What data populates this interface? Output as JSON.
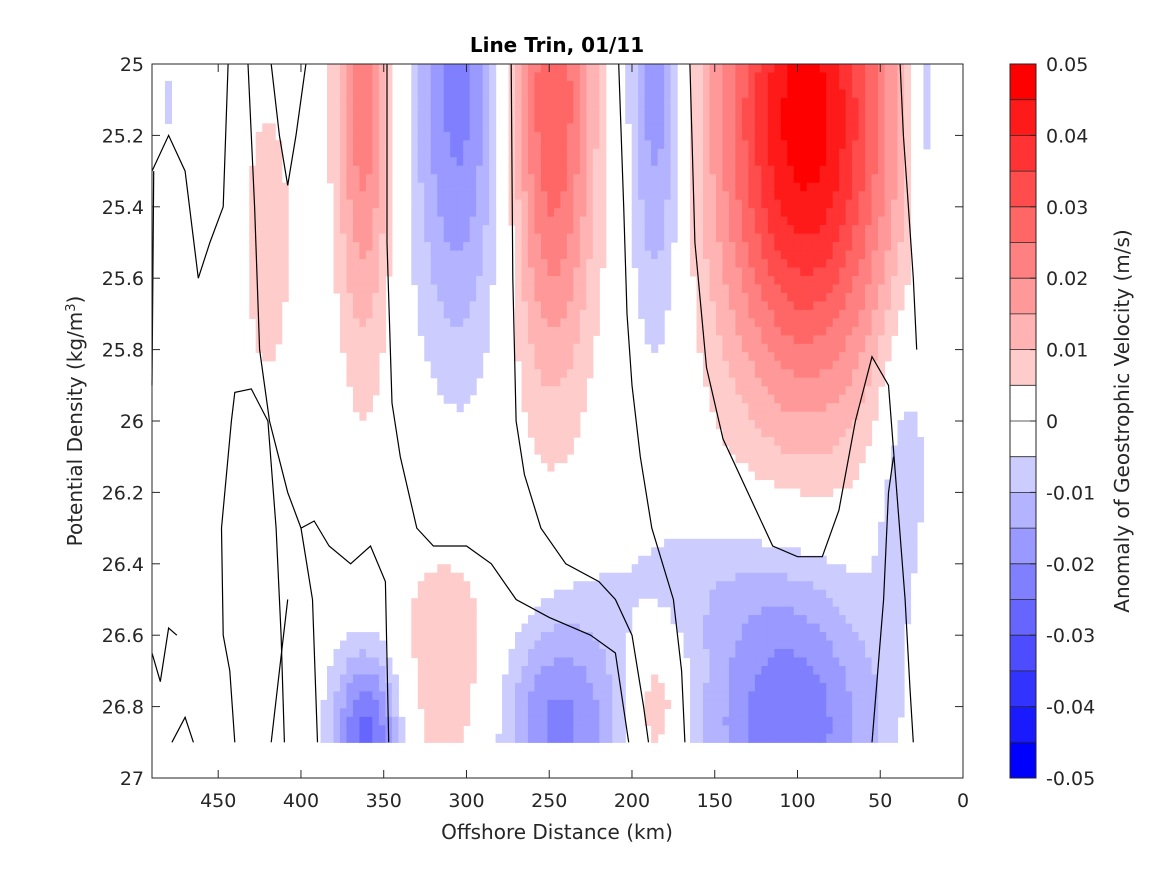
{
  "chart_data": {
    "type": "heatmap",
    "subtype": "filled-contour",
    "title": "Line Trin, 01/11",
    "xlabel": "Offshore Distance (km)",
    "ylabel": "Potential Density (kg/m3)",
    "ylabel_parts": {
      "main": "Potential Density (kg/m",
      "sup": "3",
      "tail": ")"
    },
    "colorbar_label": "Anomaly of Geostrophic Velocity (m/s)",
    "xlim": [
      490,
      0
    ],
    "ylim": [
      25,
      27
    ],
    "x_reversed": true,
    "y_reversed": true,
    "x_ticks": [
      450,
      400,
      350,
      300,
      250,
      200,
      150,
      100,
      50,
      0
    ],
    "y_ticks": [
      25,
      25.2,
      25.4,
      25.6,
      25.8,
      26,
      26.2,
      26.4,
      26.6,
      26.8,
      27
    ],
    "y_tick_labels": [
      "25",
      "25.2",
      "25.4",
      "25.6",
      "25.8",
      "26",
      "26.2",
      "26.4",
      "26.6",
      "26.8",
      "27"
    ],
    "colorbar_ticks": [
      0.05,
      0.04,
      0.03,
      0.02,
      0.01,
      0,
      -0.01,
      -0.02,
      -0.03,
      -0.04,
      -0.05
    ],
    "colorbar_tick_labels": [
      "0.05",
      "0.04",
      "0.03",
      "0.02",
      "0.01",
      "0",
      "-0.01",
      "-0.02",
      "-0.03",
      "-0.04",
      "-0.05"
    ],
    "colorbar_levels": [
      0.05,
      0.045,
      0.04,
      0.035,
      0.03,
      0.025,
      0.02,
      0.015,
      0.01,
      0.005,
      0,
      -0.005,
      -0.01,
      -0.015,
      -0.02,
      -0.025,
      -0.03,
      -0.035,
      -0.04,
      -0.045,
      -0.05
    ],
    "colormap": {
      "positive": "#ff0000",
      "zero": "#ffffff",
      "negative": "#0000ff"
    },
    "data_extent": {
      "x": [
        490,
        20
      ],
      "y": [
        25,
        26.9
      ]
    },
    "cores": [
      {
        "x": 362,
        "y": 25.0,
        "x_sigma": 12,
        "y_sigma": 0.55,
        "amp": 0.025
      },
      {
        "x": 420,
        "y": 25.5,
        "x_sigma": 12,
        "y_sigma": 0.35,
        "amp": 0.008
      },
      {
        "x": 305,
        "y": 25.05,
        "x_sigma": 20,
        "y_sigma": 0.55,
        "amp": -0.022
      },
      {
        "x": 248,
        "y": 25.1,
        "x_sigma": 18,
        "y_sigma": 0.55,
        "amp": 0.03
      },
      {
        "x": 185,
        "y": 25.05,
        "x_sigma": 12,
        "y_sigma": 0.5,
        "amp": -0.02
      },
      {
        "x": 95,
        "y": 25.15,
        "x_sigma": 38,
        "y_sigma": 0.55,
        "amp": 0.048
      },
      {
        "x": 20,
        "y": 25.05,
        "x_sigma": 10,
        "y_sigma": 0.3,
        "amp": -0.015
      },
      {
        "x": 35,
        "y": 26.2,
        "x_sigma": 12,
        "y_sigma": 0.35,
        "amp": -0.012
      },
      {
        "x": 360,
        "y": 26.88,
        "x_sigma": 15,
        "y_sigma": 0.18,
        "amp": -0.028
      },
      {
        "x": 245,
        "y": 26.85,
        "x_sigma": 28,
        "y_sigma": 0.22,
        "amp": -0.022
      },
      {
        "x": 105,
        "y": 26.85,
        "x_sigma": 38,
        "y_sigma": 0.28,
        "amp": -0.025
      },
      {
        "x": 310,
        "y": 26.7,
        "x_sigma": 28,
        "y_sigma": 0.3,
        "amp": 0.01
      },
      {
        "x": 185,
        "y": 26.8,
        "x_sigma": 12,
        "y_sigma": 0.15,
        "amp": 0.012
      },
      {
        "x": 25,
        "y": 26.7,
        "x_sigma": 8,
        "y_sigma": 0.3,
        "amp": 0.009
      },
      {
        "x": 148,
        "y": 26.45,
        "x_sigma": 60,
        "y_sigma": 0.15,
        "amp": -0.006
      },
      {
        "x": 480,
        "y": 25.1,
        "x_sigma": 5,
        "y_sigma": 0.1,
        "amp": -0.006
      }
    ],
    "zero_contours": [
      [
        [
          490,
          25.3
        ],
        [
          480,
          25.2
        ],
        [
          470,
          25.3
        ],
        [
          462,
          25.6
        ],
        [
          455,
          25.5
        ],
        [
          447,
          25.4
        ],
        [
          444,
          25.0
        ]
      ],
      [
        [
          490,
          25.9
        ],
        [
          489,
          25.3
        ]
      ],
      [
        [
          432,
          25.0
        ],
        [
          428,
          25.4
        ],
        [
          425,
          25.8
        ],
        [
          419,
          26.0
        ],
        [
          408,
          26.2
        ],
        [
          400,
          26.3
        ],
        [
          392,
          26.28
        ],
        [
          383,
          26.35
        ],
        [
          370,
          26.4
        ],
        [
          358,
          26.35
        ],
        [
          349,
          26.45
        ],
        [
          347,
          26.9
        ]
      ],
      [
        [
          418,
          25.0
        ],
        [
          413,
          25.2
        ],
        [
          408,
          25.34
        ],
        [
          403,
          25.2
        ],
        [
          397,
          25.0
        ]
      ],
      [
        [
          400,
          26.3
        ],
        [
          393,
          26.5
        ],
        [
          390,
          26.9
        ]
      ],
      [
        [
          408,
          26.5
        ],
        [
          413,
          26.7
        ],
        [
          418,
          26.9
        ]
      ],
      [
        [
          440,
          26.9
        ],
        [
          443,
          26.7
        ],
        [
          447,
          26.6
        ],
        [
          448,
          26.3
        ],
        [
          442,
          26.0
        ],
        [
          440,
          25.92
        ],
        [
          430,
          25.91
        ],
        [
          420,
          26.0
        ],
        [
          415,
          26.3
        ],
        [
          412,
          26.6
        ],
        [
          410,
          26.9
        ]
      ],
      [
        [
          490,
          26.65
        ],
        [
          485,
          26.73
        ],
        [
          480,
          26.58
        ],
        [
          475,
          26.6
        ]
      ],
      [
        [
          478,
          26.9
        ],
        [
          470,
          26.83
        ],
        [
          465,
          26.9
        ]
      ],
      [
        [
          348,
          25.0
        ],
        [
          348,
          25.5
        ],
        [
          345,
          25.95
        ],
        [
          340,
          26.1
        ],
        [
          330,
          26.3
        ],
        [
          320,
          26.35
        ],
        [
          300,
          26.35
        ],
        [
          285,
          26.4
        ],
        [
          270,
          26.5
        ],
        [
          250,
          26.55
        ],
        [
          225,
          26.6
        ],
        [
          210,
          26.65
        ],
        [
          202,
          26.9
        ]
      ],
      [
        [
          273,
          25.0
        ],
        [
          272,
          25.6
        ],
        [
          270,
          26.0
        ],
        [
          265,
          26.15
        ],
        [
          255,
          26.3
        ],
        [
          240,
          26.4
        ],
        [
          220,
          26.45
        ],
        [
          210,
          26.5
        ],
        [
          200,
          26.6
        ],
        [
          193,
          26.8
        ],
        [
          190,
          26.9
        ]
      ],
      [
        [
          208,
          25.0
        ],
        [
          205,
          25.4
        ],
        [
          203,
          25.7
        ],
        [
          200,
          25.9
        ],
        [
          195,
          26.1
        ],
        [
          188,
          26.3
        ],
        [
          175,
          26.5
        ],
        [
          170,
          26.7
        ],
        [
          168,
          26.9
        ]
      ],
      [
        [
          165,
          25.0
        ],
        [
          162,
          25.5
        ],
        [
          155,
          25.85
        ],
        [
          145,
          26.05
        ],
        [
          130,
          26.2
        ],
        [
          115,
          26.35
        ],
        [
          100,
          26.38
        ],
        [
          85,
          26.38
        ],
        [
          75,
          26.25
        ],
        [
          65,
          26.0
        ],
        [
          55,
          25.82
        ],
        [
          45,
          25.9
        ],
        [
          40,
          26.2
        ],
        [
          35,
          26.5
        ],
        [
          32,
          26.75
        ],
        [
          30,
          26.9
        ]
      ],
      [
        [
          38,
          25.0
        ],
        [
          36,
          25.2
        ],
        [
          33,
          25.4
        ],
        [
          30,
          25.6
        ],
        [
          28,
          25.8
        ]
      ],
      [
        [
          55,
          26.9
        ],
        [
          48,
          26.5
        ],
        [
          45,
          26.2
        ],
        [
          42,
          26.1
        ]
      ]
    ]
  }
}
